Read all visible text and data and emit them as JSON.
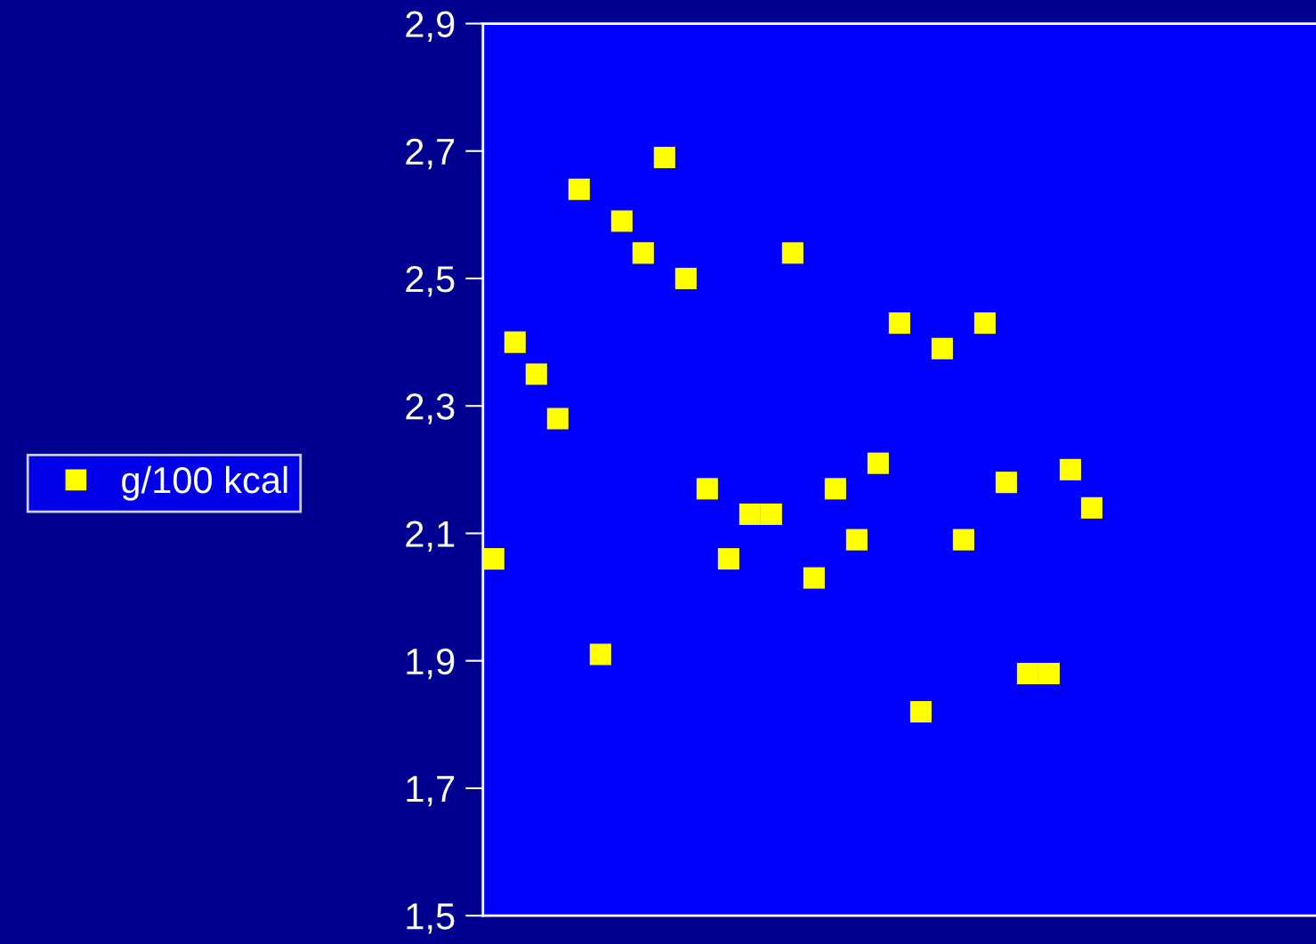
{
  "chart_data": {
    "type": "scatter",
    "categories": [
      null,
      null,
      null,
      null,
      null,
      null,
      null,
      null,
      null,
      null,
      null,
      null,
      null,
      null,
      null,
      null,
      null,
      null,
      null,
      null,
      null,
      null,
      null,
      null,
      null,
      null,
      null,
      null,
      null,
      null,
      null,
      null,
      null,
      null,
      null,
      null,
      null,
      null,
      null
    ],
    "series": [
      {
        "name": "g/100 kcal",
        "color": "#ffff00",
        "values": [
          2.06,
          2.4,
          2.35,
          2.28,
          2.64,
          1.91,
          2.59,
          2.54,
          2.69,
          2.5,
          2.17,
          2.06,
          2.13,
          2.13,
          2.54,
          2.03,
          2.17,
          2.09,
          2.21,
          2.43,
          1.82,
          2.39,
          2.09,
          2.43,
          2.18,
          1.88,
          1.88,
          2.2,
          2.14,
          null,
          null,
          null,
          null,
          null,
          null,
          null,
          null,
          null,
          null
        ]
      }
    ],
    "ylim": [
      1.5,
      2.9
    ],
    "yticks": [
      {
        "value": 1.5,
        "label": "1,5"
      },
      {
        "value": 1.7,
        "label": "1,7"
      },
      {
        "value": 1.9,
        "label": "1,9"
      },
      {
        "value": 2.1,
        "label": "2,1"
      },
      {
        "value": 2.3,
        "label": "2,3"
      },
      {
        "value": 2.5,
        "label": "2,5"
      },
      {
        "value": 2.7,
        "label": "2,7"
      },
      {
        "value": 2.9,
        "label": "2,9"
      }
    ],
    "marker": "square",
    "grid": false,
    "legend": "left",
    "tick_labels": "y"
  }
}
